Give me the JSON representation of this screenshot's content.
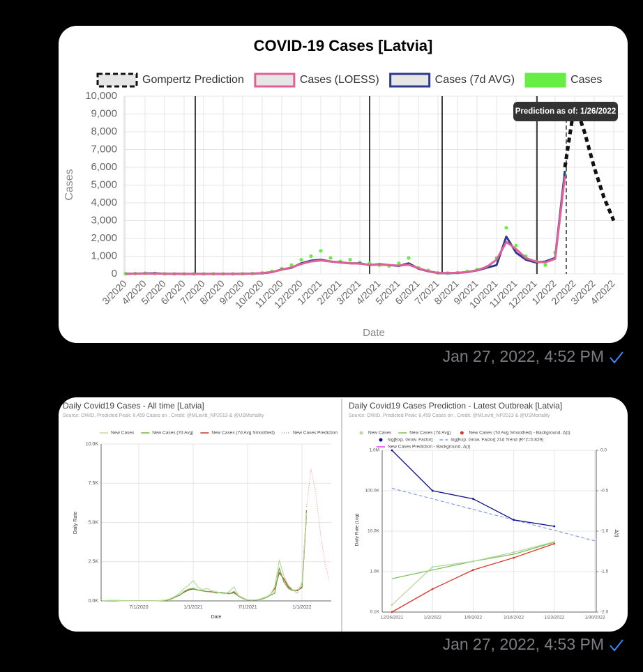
{
  "messages": [
    {
      "timestamp": "Jan 27, 2022, 4:52 PM"
    },
    {
      "timestamp": "Jan 27, 2022, 4:53 PM"
    }
  ],
  "chart_data": [
    {
      "type": "line",
      "title": "COVID-19 Cases [Latvia]",
      "x_label": "Date",
      "y_label": "Cases",
      "annotation": "Prediction as of: 1/26/2022",
      "legend": "top",
      "legend_style": "box",
      "grid": true,
      "categories": [
        "3/2020",
        null,
        "4/2020",
        null,
        "5/2020",
        null,
        "6/2020",
        null,
        "7/2020",
        null,
        "8/2020",
        null,
        "9/2020",
        null,
        "10/2020",
        null,
        "11/2020",
        null,
        "12/2020",
        null,
        "1/2021",
        null,
        "2/2021",
        null,
        "3/2021",
        null,
        "4/2021",
        null,
        "5/2021",
        null,
        "6/2021",
        null,
        "7/2021",
        null,
        "8/2021",
        null,
        "9/2021",
        null,
        "10/2021",
        null,
        "11/2021",
        null,
        "12/2021",
        null,
        "1/2022",
        null,
        "2/2022",
        null,
        "3/2022",
        null,
        "4/2022"
      ],
      "ylim": [
        0,
        10000
      ],
      "yticks": [
        0,
        {
          "value": 1000,
          "label": "1,000"
        },
        {
          "value": 2000,
          "label": "2,000"
        },
        {
          "value": 3000,
          "label": "3,000"
        },
        {
          "value": 4000,
          "label": "4,000"
        },
        {
          "value": 5000,
          "label": "5,000"
        },
        {
          "value": 6000,
          "label": "6,000"
        },
        {
          "value": 7000,
          "label": "7,000"
        },
        {
          "value": 8000,
          "label": "8,000"
        },
        {
          "value": 9000,
          "label": "9,000"
        },
        {
          "value": 10000,
          "label": "10,000"
        }
      ],
      "series": [
        {
          "name": "Gompertz Prediction",
          "color": "#111111",
          "style": "dashed",
          "values": [
            null,
            null,
            null,
            null,
            null,
            null,
            null,
            null,
            null,
            null,
            null,
            null,
            null,
            null,
            null,
            null,
            null,
            null,
            null,
            null,
            null,
            null,
            null,
            null,
            null,
            null,
            null,
            null,
            null,
            null,
            null,
            null,
            null,
            null,
            null,
            null,
            null,
            null,
            null,
            null,
            null,
            null,
            null,
            null,
            null,
            6000,
            9600,
            8000,
            6000,
            4300,
            3000
          ]
        },
        {
          "name": "Cases (LOESS)",
          "color": "#e0609a",
          "style": "line",
          "values": [
            10,
            15,
            20,
            20,
            15,
            10,
            5,
            5,
            5,
            5,
            5,
            5,
            10,
            20,
            50,
            110,
            240,
            370,
            560,
            700,
            760,
            700,
            640,
            600,
            580,
            520,
            520,
            500,
            470,
            520,
            320,
            160,
            60,
            50,
            70,
            110,
            210,
            400,
            800,
            1800,
            1400,
            900,
            700,
            650,
            850,
            5500,
            null,
            null,
            null,
            null,
            null
          ]
        },
        {
          "name": "Cases (7d AVG)",
          "color": "#2b3a8c",
          "style": "line",
          "values": [
            10,
            20,
            30,
            40,
            15,
            10,
            5,
            5,
            5,
            5,
            5,
            5,
            10,
            20,
            40,
            100,
            250,
            350,
            600,
            750,
            800,
            700,
            650,
            600,
            600,
            500,
            550,
            500,
            450,
            600,
            300,
            150,
            50,
            40,
            60,
            100,
            200,
            350,
            500,
            2100,
            1200,
            800,
            650,
            700,
            900,
            5800,
            null,
            null,
            null,
            null,
            null
          ]
        },
        {
          "name": "Cases",
          "color": "#66ee44",
          "style": "points",
          "values": [
            15,
            25,
            40,
            30,
            10,
            8,
            5,
            6,
            4,
            7,
            5,
            6,
            12,
            25,
            60,
            150,
            300,
            500,
            800,
            1000,
            1300,
            900,
            700,
            800,
            650,
            600,
            500,
            450,
            600,
            900,
            350,
            200,
            60,
            50,
            70,
            150,
            250,
            400,
            900,
            2600,
            1600,
            1000,
            700,
            500,
            1200,
            5600,
            null,
            null,
            null,
            null,
            null
          ]
        }
      ]
    },
    {
      "type": "line",
      "title": "Daily Covid19 Cases - All time [Latvia]",
      "subtitle": "Source: OWID, Predicted Peak: 8,459 Cases on , Credit: @MLevitt_NP2013 & @USMortality",
      "x_label": "Date",
      "y_label": "Daily Rate",
      "legend": "top",
      "legend_style": "marker",
      "grid": true,
      "categories": [
        null,
        null,
        null,
        null,
        null,
        null,
        null,
        null,
        "7/1/2020",
        null,
        null,
        null,
        null,
        null,
        null,
        null,
        null,
        null,
        null,
        null,
        "1/1/2021",
        null,
        null,
        null,
        null,
        null,
        null,
        null,
        null,
        null,
        null,
        null,
        "7/1/2021",
        null,
        null,
        null,
        null,
        null,
        null,
        null,
        null,
        null,
        null,
        null,
        "1/1/2022",
        null,
        null,
        null,
        null,
        null,
        null
      ],
      "ylim": [
        0,
        10000
      ],
      "yticks": [
        {
          "value": 0,
          "label": "0.0K"
        },
        {
          "value": 2500,
          "label": "2.5K"
        },
        {
          "value": 5000,
          "label": "5.0K"
        },
        {
          "value": 7500,
          "label": "7.5K"
        },
        {
          "value": 10000,
          "label": "10.0K"
        }
      ],
      "series": [
        {
          "name": "New Cases",
          "color": "#bcdca4",
          "style": "line",
          "values": [
            15,
            25,
            40,
            30,
            10,
            8,
            5,
            6,
            4,
            7,
            5,
            6,
            12,
            25,
            60,
            150,
            300,
            500,
            800,
            1000,
            1300,
            900,
            700,
            800,
            650,
            600,
            500,
            450,
            600,
            900,
            350,
            200,
            60,
            50,
            70,
            150,
            250,
            400,
            900,
            2600,
            1600,
            1000,
            700,
            500,
            1200,
            5600,
            null,
            null,
            null,
            null,
            null
          ]
        },
        {
          "name": "New Cases (7d Avg)",
          "color": "#6cb24a",
          "style": "line",
          "values": [
            10,
            20,
            30,
            40,
            15,
            10,
            5,
            5,
            5,
            5,
            5,
            5,
            10,
            20,
            40,
            100,
            250,
            350,
            600,
            750,
            800,
            700,
            650,
            600,
            600,
            500,
            550,
            500,
            450,
            600,
            300,
            150,
            50,
            40,
            60,
            100,
            200,
            350,
            500,
            2100,
            1200,
            800,
            650,
            700,
            900,
            5800,
            null,
            null,
            null,
            null,
            null
          ]
        },
        {
          "name": "New Cases (7d Avg Smoothed)",
          "color": "#b83a26",
          "style": "line",
          "values": [
            10,
            15,
            20,
            20,
            15,
            10,
            5,
            5,
            5,
            5,
            5,
            5,
            10,
            20,
            50,
            110,
            240,
            370,
            560,
            700,
            760,
            700,
            640,
            600,
            580,
            520,
            520,
            500,
            470,
            520,
            320,
            160,
            60,
            50,
            70,
            110,
            210,
            400,
            800,
            1800,
            1400,
            900,
            700,
            650,
            850,
            5500,
            null,
            null,
            null,
            null,
            null
          ]
        },
        {
          "name": "New Cases Prediction",
          "color": "#e08a8a",
          "style": "dotted",
          "values": [
            null,
            null,
            null,
            null,
            null,
            null,
            null,
            null,
            null,
            null,
            null,
            null,
            null,
            null,
            null,
            null,
            null,
            null,
            null,
            null,
            null,
            null,
            null,
            null,
            null,
            null,
            null,
            null,
            null,
            null,
            null,
            null,
            null,
            null,
            null,
            null,
            null,
            null,
            null,
            null,
            null,
            null,
            null,
            null,
            null,
            6000,
            8400,
            7000,
            4500,
            2500,
            1300
          ]
        }
      ]
    },
    {
      "type": "line",
      "title": "Daily Covid19 Cases Prediction - Latest Outbreak [Latvia]",
      "subtitle": "Source: OWID, Predicted Peak: 8,459 Cases on , Credit: @MLevitt_NP2013 & @USMortality",
      "y_label": "Daily Rate (Log)",
      "y2_label": "Δ(t)",
      "legend": "top",
      "legend_style": "marker",
      "grid": true,
      "ylog": true,
      "categories": [
        "12/26/2021",
        "1/2/2022",
        "1/9/2022",
        "1/16/2022",
        "1/23/2022",
        "1/30/2022"
      ],
      "ylim": [
        100,
        1000000
      ],
      "yticks": [
        {
          "value": 100,
          "label": "0.1K"
        },
        {
          "value": 1000,
          "label": "1.0K"
        },
        {
          "value": 10000,
          "label": "10.0K"
        },
        {
          "value": 100000,
          "label": "100.0K"
        },
        {
          "value": 1000000,
          "label": "1.0M"
        }
      ],
      "y2lim": [
        -2,
        0
      ],
      "y2ticks": [
        {
          "value": 0,
          "label": "0.0"
        },
        -0.5,
        {
          "value": -1,
          "label": "-1.0"
        },
        -1.5,
        {
          "value": -2,
          "label": "-2.0"
        }
      ],
      "series": [
        {
          "name": "New Cases",
          "color": "#b5d99c",
          "style": "line",
          "marker": "circle",
          "values": [
            150,
            1300,
            1800,
            3000,
            5500,
            null
          ]
        },
        {
          "name": "New Cases (7d Avg)",
          "color": "#7fbf5f",
          "style": "line",
          "values": [
            670,
            1100,
            1800,
            2700,
            5300,
            null
          ]
        },
        {
          "name": "New Cases (7d Avg Smoothed) - Background, Δ(t)",
          "color": "#d9382c",
          "style": "line",
          "marker": "circle",
          "values": [
            100,
            370,
            1100,
            2200,
            4900,
            null
          ]
        },
        {
          "name": "log[Exp. Grow. Factor]",
          "color": "#0a0a8c",
          "style": "line",
          "marker": "circle",
          "axis": "y2",
          "values": [
            0,
            -0.5,
            -0.6,
            -0.86,
            -0.94,
            null
          ]
        },
        {
          "name": "log[Exp. Grow. Factor] 21d Trend (R^2=0.829)",
          "color": "#7f9fe0",
          "style": "dashed",
          "axis": "y2",
          "values": [
            -0.47,
            -0.6,
            -0.73,
            -0.86,
            -0.99,
            -1.12
          ]
        },
        {
          "name": "New Cases Prediction - Background, Δ(t)",
          "color": "#e040e0",
          "style": "line",
          "values": [
            null,
            null,
            null,
            null,
            null,
            null
          ]
        }
      ]
    }
  ]
}
